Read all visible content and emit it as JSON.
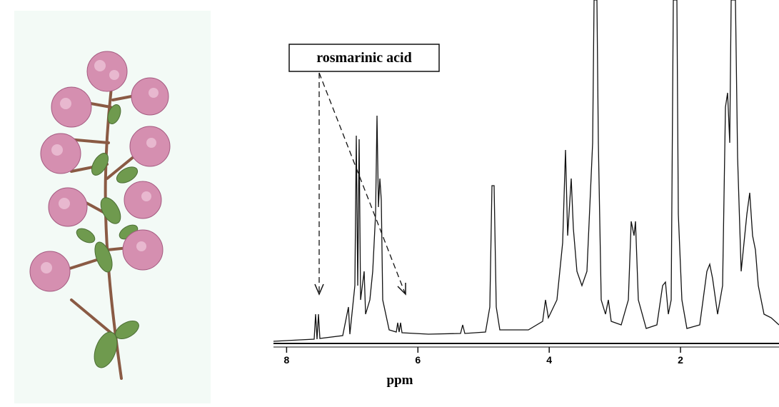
{
  "chart_data": {
    "type": "spectrum",
    "annotation": "rosmarinic acid",
    "xlabel": "ppm",
    "xlim": [
      8.2,
      0.5
    ],
    "xticks": [
      8,
      6,
      4,
      2
    ]
  }
}
